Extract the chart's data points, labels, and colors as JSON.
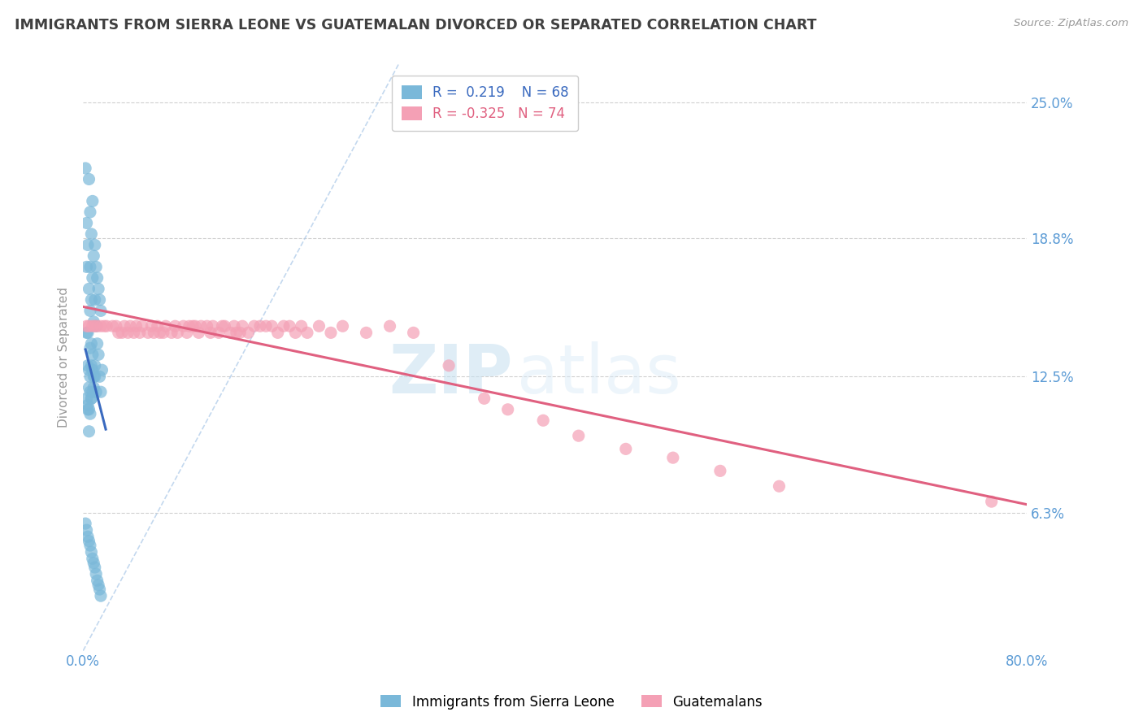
{
  "title": "IMMIGRANTS FROM SIERRA LEONE VS GUATEMALAN DIVORCED OR SEPARATED CORRELATION CHART",
  "source_text": "Source: ZipAtlas.com",
  "ylabel": "Divorced or Separated",
  "legend_label_1": "Immigrants from Sierra Leone",
  "legend_label_2": "Guatemalans",
  "R1": 0.219,
  "N1": 68,
  "R2": -0.325,
  "N2": 74,
  "color_blue": "#7ab8d9",
  "color_pink": "#f4a0b5",
  "color_trend_blue": "#3a6abf",
  "color_trend_pink": "#e06080",
  "color_axis_labels": "#5b9bd5",
  "color_title": "#404040",
  "xmin": 0.0,
  "xmax": 0.8,
  "ymin": 0.0,
  "ymax": 0.268,
  "yticks": [
    0.063,
    0.125,
    0.188,
    0.25
  ],
  "ytick_labels": [
    "6.3%",
    "12.5%",
    "18.8%",
    "25.0%"
  ],
  "xticks": [
    0.0,
    0.1,
    0.2,
    0.3,
    0.4,
    0.5,
    0.6,
    0.7,
    0.8
  ],
  "xtick_labels": [
    "0.0%",
    "",
    "",
    "",
    "",
    "",
    "",
    "",
    "80.0%"
  ],
  "watermark_zip": "ZIP",
  "watermark_atlas": "atlas",
  "blue_scatter_x": [
    0.002,
    0.003,
    0.003,
    0.004,
    0.004,
    0.004,
    0.005,
    0.005,
    0.005,
    0.006,
    0.006,
    0.006,
    0.006,
    0.007,
    0.007,
    0.007,
    0.007,
    0.008,
    0.008,
    0.008,
    0.009,
    0.009,
    0.009,
    0.01,
    0.01,
    0.01,
    0.011,
    0.011,
    0.011,
    0.012,
    0.012,
    0.013,
    0.013,
    0.014,
    0.014,
    0.015,
    0.015,
    0.016,
    0.003,
    0.004,
    0.005,
    0.006,
    0.007,
    0.008,
    0.009,
    0.01,
    0.005,
    0.006,
    0.007,
    0.008,
    0.003,
    0.004,
    0.005,
    0.006,
    0.002,
    0.003,
    0.004,
    0.005,
    0.006,
    0.007,
    0.008,
    0.009,
    0.01,
    0.011,
    0.012,
    0.013,
    0.014,
    0.015
  ],
  "blue_scatter_y": [
    0.22,
    0.195,
    0.175,
    0.185,
    0.13,
    0.11,
    0.215,
    0.165,
    0.1,
    0.2,
    0.175,
    0.155,
    0.125,
    0.19,
    0.16,
    0.14,
    0.115,
    0.205,
    0.17,
    0.135,
    0.18,
    0.15,
    0.12,
    0.185,
    0.16,
    0.13,
    0.175,
    0.148,
    0.118,
    0.17,
    0.14,
    0.165,
    0.135,
    0.16,
    0.125,
    0.155,
    0.118,
    0.128,
    0.145,
    0.145,
    0.128,
    0.138,
    0.13,
    0.128,
    0.125,
    0.125,
    0.12,
    0.118,
    0.115,
    0.118,
    0.115,
    0.112,
    0.11,
    0.108,
    0.058,
    0.055,
    0.052,
    0.05,
    0.048,
    0.045,
    0.042,
    0.04,
    0.038,
    0.035,
    0.032,
    0.03,
    0.028,
    0.025
  ],
  "pink_scatter_x": [
    0.003,
    0.005,
    0.008,
    0.01,
    0.012,
    0.015,
    0.018,
    0.02,
    0.025,
    0.028,
    0.03,
    0.033,
    0.035,
    0.038,
    0.04,
    0.043,
    0.045,
    0.048,
    0.05,
    0.055,
    0.058,
    0.06,
    0.063,
    0.065,
    0.068,
    0.07,
    0.075,
    0.078,
    0.08,
    0.085,
    0.088,
    0.09,
    0.093,
    0.095,
    0.098,
    0.1,
    0.105,
    0.108,
    0.11,
    0.115,
    0.118,
    0.12,
    0.125,
    0.128,
    0.13,
    0.133,
    0.135,
    0.14,
    0.145,
    0.15,
    0.155,
    0.16,
    0.165,
    0.17,
    0.175,
    0.18,
    0.185,
    0.19,
    0.2,
    0.21,
    0.22,
    0.24,
    0.26,
    0.28,
    0.31,
    0.34,
    0.36,
    0.39,
    0.42,
    0.46,
    0.5,
    0.54,
    0.59,
    0.77
  ],
  "pink_scatter_y": [
    0.148,
    0.148,
    0.148,
    0.148,
    0.148,
    0.148,
    0.148,
    0.148,
    0.148,
    0.148,
    0.145,
    0.145,
    0.148,
    0.145,
    0.148,
    0.145,
    0.148,
    0.145,
    0.148,
    0.145,
    0.148,
    0.145,
    0.148,
    0.145,
    0.145,
    0.148,
    0.145,
    0.148,
    0.145,
    0.148,
    0.145,
    0.148,
    0.148,
    0.148,
    0.145,
    0.148,
    0.148,
    0.145,
    0.148,
    0.145,
    0.148,
    0.148,
    0.145,
    0.148,
    0.145,
    0.145,
    0.148,
    0.145,
    0.148,
    0.148,
    0.148,
    0.148,
    0.145,
    0.148,
    0.148,
    0.145,
    0.148,
    0.145,
    0.148,
    0.145,
    0.148,
    0.145,
    0.148,
    0.145,
    0.13,
    0.115,
    0.11,
    0.105,
    0.098,
    0.092,
    0.088,
    0.082,
    0.075,
    0.068
  ]
}
